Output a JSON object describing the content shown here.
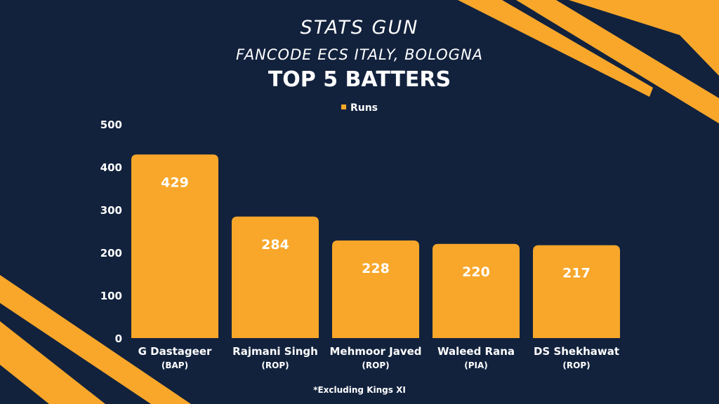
{
  "colors": {
    "background": "#12223d",
    "accent": "#f8a72a",
    "text": "#ffffff"
  },
  "header": {
    "title": "STATS GUN",
    "subtitle": "FANCODE ECS ITALY, BOLOGNA",
    "heading": "TOP 5 BATTERS"
  },
  "footnote": "*Excluding Kings XI",
  "chart_data": {
    "type": "bar",
    "categories": [
      "G Dastageer",
      "Rajmani Singh",
      "Mehmoor Javed",
      "Waleed Rana",
      "DS Shekhawat"
    ],
    "category_teams": [
      "(BAP)",
      "(ROP)",
      "(ROP)",
      "(PIA)",
      "(ROP)"
    ],
    "series": [
      {
        "name": "Runs",
        "values": [
          429,
          284,
          228,
          220,
          217
        ]
      }
    ],
    "ylim": [
      0,
      500
    ],
    "yticks": [
      0,
      100,
      200,
      300,
      400,
      500
    ],
    "grid": false,
    "legend": "top-center",
    "data_labels": true
  }
}
